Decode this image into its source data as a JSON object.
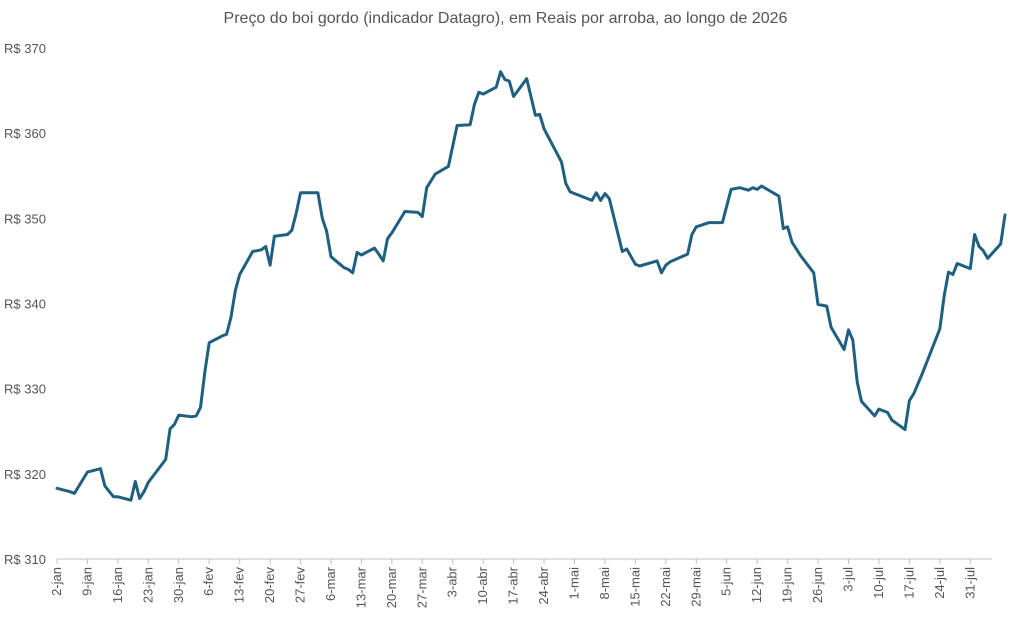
{
  "chart_data": {
    "type": "line",
    "title": "Preço do boi gordo (indicador Datagro), em Reais por arroba, ao longo de 2026",
    "xlabel": "",
    "ylabel": "",
    "ylim": [
      310,
      370
    ],
    "y_ticks": [
      310,
      320,
      330,
      340,
      350,
      360,
      370
    ],
    "y_tick_labels": [
      "R$ 310",
      "R$ 320",
      "R$ 330",
      "R$ 340",
      "R$ 350",
      "R$ 360",
      "R$ 370"
    ],
    "x_range": [
      "2026-01-02",
      "2026-08-05"
    ],
    "x_tick_dates": [
      "2026-01-02",
      "2026-01-09",
      "2026-01-16",
      "2026-01-23",
      "2026-01-30",
      "2026-02-06",
      "2026-02-13",
      "2026-02-20",
      "2026-02-27",
      "2026-03-06",
      "2026-03-13",
      "2026-03-20",
      "2026-03-27",
      "2026-04-03",
      "2026-04-10",
      "2026-04-17",
      "2026-04-24",
      "2026-05-01",
      "2026-05-08",
      "2026-05-15",
      "2026-05-22",
      "2026-05-29",
      "2026-06-05",
      "2026-06-12",
      "2026-06-19",
      "2026-06-26",
      "2026-07-03",
      "2026-07-10",
      "2026-07-17",
      "2026-07-24",
      "2026-07-31"
    ],
    "x_tick_labels": [
      "2-jan",
      "9-jan",
      "16-jan",
      "23-jan",
      "30-jan",
      "6-fev",
      "13-fev",
      "20-fev",
      "27-fev",
      "6-mar",
      "13-mar",
      "20-mar",
      "27-mar",
      "3-abr",
      "10-abr",
      "17-abr",
      "24-abr",
      "1-mai",
      "8-mai",
      "15-mai",
      "22-mai",
      "29-mai",
      "5-jun",
      "12-jun",
      "19-jun",
      "26-jun",
      "3-jul",
      "10-jul",
      "17-jul",
      "24-jul",
      "31-jul"
    ],
    "grid": false,
    "legend": "none",
    "series": [
      {
        "color": "#1F5F7F",
        "points": [
          [
            "2026-01-02",
            318.3
          ],
          [
            "2026-01-05",
            317.9
          ],
          [
            "2026-01-06",
            317.7
          ],
          [
            "2026-01-09",
            320.2
          ],
          [
            "2026-01-12",
            320.6
          ],
          [
            "2026-01-13",
            318.6
          ],
          [
            "2026-01-15",
            317.3
          ],
          [
            "2026-01-16",
            317.3
          ],
          [
            "2026-01-19",
            316.9
          ],
          [
            "2026-01-20",
            319.1
          ],
          [
            "2026-01-21",
            317.1
          ],
          [
            "2026-01-22",
            317.9
          ],
          [
            "2026-01-23",
            319.0
          ],
          [
            "2026-01-27",
            321.7
          ],
          [
            "2026-01-28",
            325.3
          ],
          [
            "2026-01-29",
            325.8
          ],
          [
            "2026-01-30",
            326.9
          ],
          [
            "2026-02-02",
            326.7
          ],
          [
            "2026-02-03",
            326.8
          ],
          [
            "2026-02-04",
            327.8
          ],
          [
            "2026-02-05",
            332.0
          ],
          [
            "2026-02-06",
            335.4
          ],
          [
            "2026-02-09",
            336.2
          ],
          [
            "2026-02-10",
            336.4
          ],
          [
            "2026-02-11",
            338.4
          ],
          [
            "2026-02-12",
            341.5
          ],
          [
            "2026-02-13",
            343.4
          ],
          [
            "2026-02-16",
            346.1
          ],
          [
            "2026-02-18",
            346.3
          ],
          [
            "2026-02-19",
            346.7
          ],
          [
            "2026-02-20",
            344.5
          ],
          [
            "2026-02-21",
            347.9
          ],
          [
            "2026-02-24",
            348.1
          ],
          [
            "2026-02-25",
            348.6
          ],
          [
            "2026-02-26",
            350.6
          ],
          [
            "2026-02-27",
            353.0
          ],
          [
            "2026-03-03",
            353.0
          ],
          [
            "2026-03-04",
            350.0
          ],
          [
            "2026-03-05",
            348.5
          ],
          [
            "2026-03-06",
            345.5
          ],
          [
            "2026-03-09",
            344.2
          ],
          [
            "2026-03-10",
            344.0
          ],
          [
            "2026-03-11",
            343.6
          ],
          [
            "2026-03-12",
            346.0
          ],
          [
            "2026-03-13",
            345.7
          ],
          [
            "2026-03-16",
            346.5
          ],
          [
            "2026-03-17",
            345.8
          ],
          [
            "2026-03-18",
            345.0
          ],
          [
            "2026-03-19",
            347.6
          ],
          [
            "2026-03-20",
            348.3
          ],
          [
            "2026-03-23",
            350.8
          ],
          [
            "2026-03-26",
            350.7
          ],
          [
            "2026-03-27",
            350.2
          ],
          [
            "2026-03-28",
            353.6
          ],
          [
            "2026-03-30",
            355.2
          ],
          [
            "2026-04-01",
            355.8
          ],
          [
            "2026-04-02",
            356.1
          ],
          [
            "2026-04-04",
            360.9
          ],
          [
            "2026-04-07",
            361.0
          ],
          [
            "2026-04-08",
            363.4
          ],
          [
            "2026-04-09",
            364.8
          ],
          [
            "2026-04-10",
            364.6
          ],
          [
            "2026-04-13",
            365.4
          ],
          [
            "2026-04-14",
            367.2
          ],
          [
            "2026-04-15",
            366.3
          ],
          [
            "2026-04-16",
            366.1
          ],
          [
            "2026-04-17",
            364.3
          ],
          [
            "2026-04-20",
            366.4
          ],
          [
            "2026-04-22",
            362.1
          ],
          [
            "2026-04-23",
            362.2
          ],
          [
            "2026-04-24",
            360.5
          ],
          [
            "2026-04-28",
            356.6
          ],
          [
            "2026-04-29",
            354.1
          ],
          [
            "2026-04-30",
            353.1
          ],
          [
            "2026-05-05",
            352.1
          ],
          [
            "2026-05-06",
            353.0
          ],
          [
            "2026-05-07",
            352.1
          ],
          [
            "2026-05-08",
            352.9
          ],
          [
            "2026-05-09",
            352.3
          ],
          [
            "2026-05-12",
            346.1
          ],
          [
            "2026-05-13",
            346.4
          ],
          [
            "2026-05-15",
            344.6
          ],
          [
            "2026-05-16",
            344.4
          ],
          [
            "2026-05-20",
            345.0
          ],
          [
            "2026-05-21",
            343.6
          ],
          [
            "2026-05-22",
            344.5
          ],
          [
            "2026-05-23",
            344.9
          ],
          [
            "2026-05-27",
            345.8
          ],
          [
            "2026-05-28",
            348.1
          ],
          [
            "2026-05-29",
            349.0
          ],
          [
            "2026-06-01",
            349.5
          ],
          [
            "2026-06-04",
            349.5
          ],
          [
            "2026-06-06",
            353.4
          ],
          [
            "2026-06-08",
            353.6
          ],
          [
            "2026-06-10",
            353.3
          ],
          [
            "2026-06-11",
            353.6
          ],
          [
            "2026-06-12",
            353.4
          ],
          [
            "2026-06-13",
            353.8
          ],
          [
            "2026-06-17",
            352.6
          ],
          [
            "2026-06-18",
            348.8
          ],
          [
            "2026-06-19",
            349.0
          ],
          [
            "2026-06-20",
            347.2
          ],
          [
            "2026-06-22",
            345.6
          ],
          [
            "2026-06-25",
            343.6
          ],
          [
            "2026-06-26",
            339.9
          ],
          [
            "2026-06-28",
            339.7
          ],
          [
            "2026-06-29",
            337.2
          ],
          [
            "2026-07-02",
            334.6
          ],
          [
            "2026-07-03",
            336.9
          ],
          [
            "2026-07-04",
            335.7
          ],
          [
            "2026-07-05",
            330.8
          ],
          [
            "2026-07-06",
            328.5
          ],
          [
            "2026-07-09",
            326.8
          ],
          [
            "2026-07-10",
            327.6
          ],
          [
            "2026-07-12",
            327.2
          ],
          [
            "2026-07-13",
            326.3
          ],
          [
            "2026-07-16",
            325.2
          ],
          [
            "2026-07-17",
            328.6
          ],
          [
            "2026-07-18",
            329.4
          ],
          [
            "2026-07-20",
            331.8
          ],
          [
            "2026-07-24",
            337.0
          ],
          [
            "2026-07-25",
            340.9
          ],
          [
            "2026-07-26",
            343.7
          ],
          [
            "2026-07-27",
            343.4
          ],
          [
            "2026-07-28",
            344.7
          ],
          [
            "2026-07-31",
            344.1
          ],
          [
            "2026-08-01",
            348.1
          ],
          [
            "2026-08-02",
            346.7
          ],
          [
            "2026-08-03",
            346.2
          ],
          [
            "2026-08-04",
            345.3
          ],
          [
            "2026-08-07",
            347.0
          ],
          [
            "2026-08-08",
            350.4
          ]
        ]
      }
    ]
  }
}
